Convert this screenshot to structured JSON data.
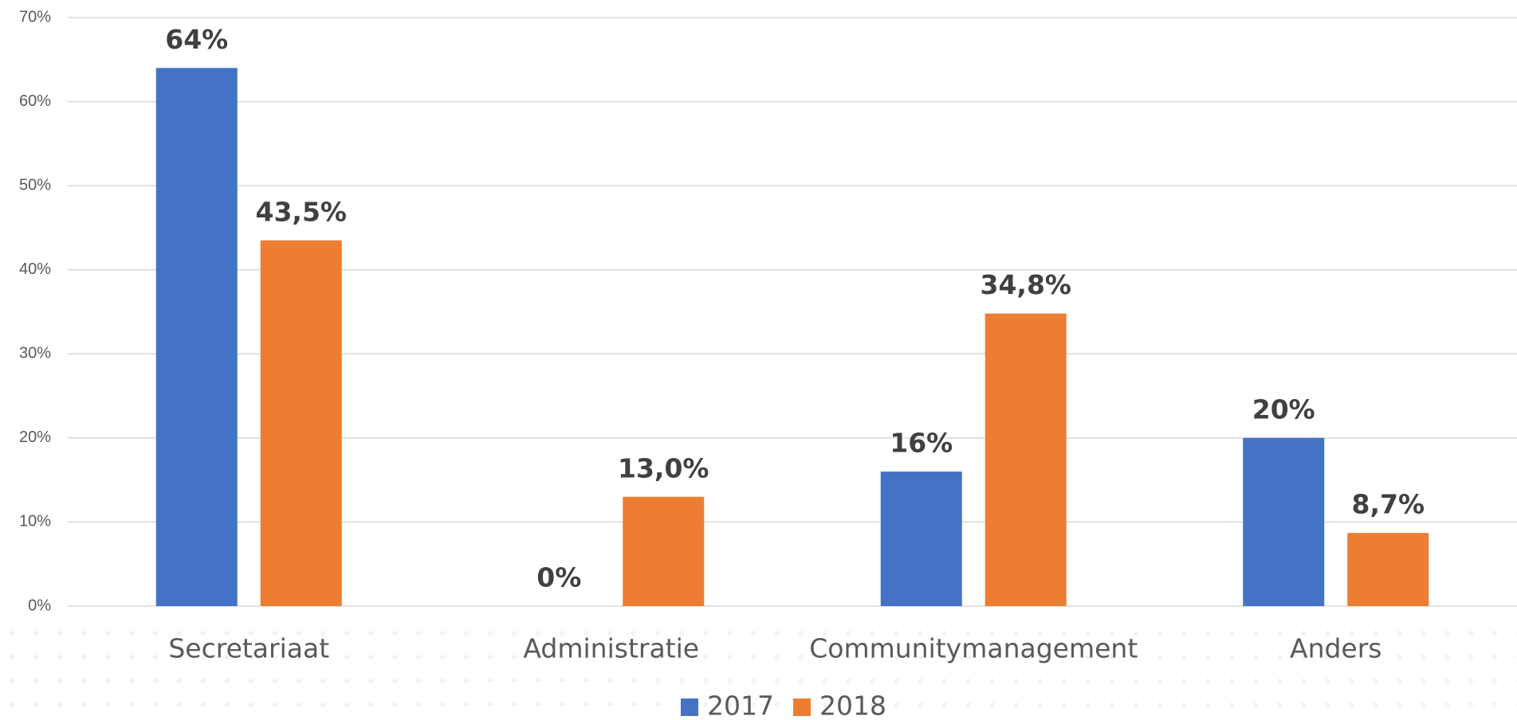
{
  "chart_data": {
    "type": "bar",
    "categories": [
      "Secretariaat",
      "Administratie",
      "Communitymanagement",
      "Anders"
    ],
    "series": [
      {
        "name": "2017",
        "color": "#4472c4",
        "values": [
          64,
          0,
          16,
          20
        ],
        "value_labels": [
          "64%",
          "0%",
          "16%",
          "20%"
        ]
      },
      {
        "name": "2018",
        "color": "#ed7d31",
        "values": [
          43.5,
          13,
          34.8,
          8.7
        ],
        "value_labels": [
          "43,5%",
          "13,0%",
          "34,8%",
          "8,7%"
        ]
      }
    ],
    "ylim": [
      0,
      70
    ],
    "yticks": [
      {
        "value": 0,
        "label": "0%"
      },
      {
        "value": 10,
        "label": "10%"
      },
      {
        "value": 20,
        "label": "20%"
      },
      {
        "value": 30,
        "label": "30%"
      },
      {
        "value": 40,
        "label": "40%"
      },
      {
        "value": 50,
        "label": "50%"
      },
      {
        "value": 60,
        "label": "60%"
      },
      {
        "value": 70,
        "label": "70%"
      }
    ],
    "grid": true,
    "legend": "bottom"
  }
}
